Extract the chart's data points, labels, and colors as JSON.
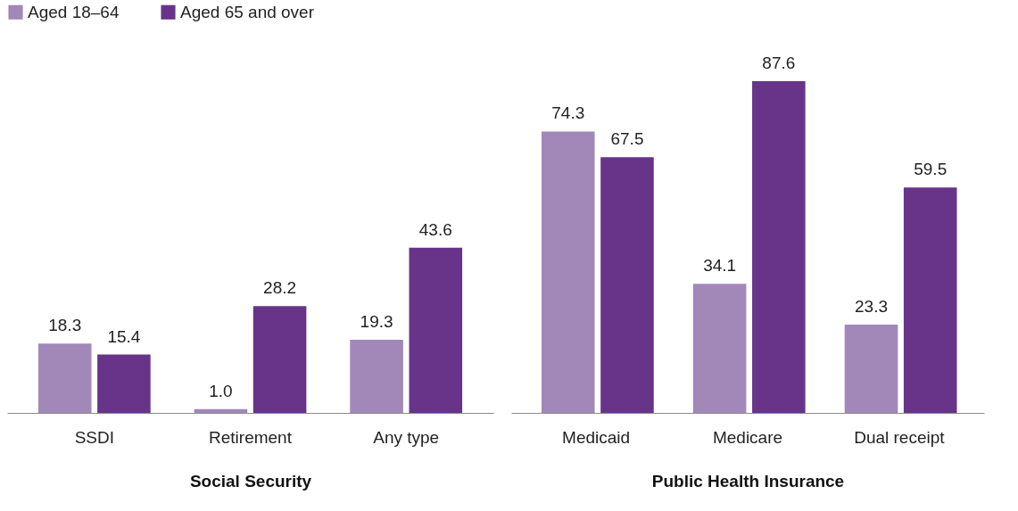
{
  "chart_data": [
    {
      "type": "bar",
      "xlabel": "Social Security",
      "categories": [
        "SSDI",
        "Retirement",
        "Any type"
      ],
      "tick_labels": "x",
      "grid": false,
      "legend": "top left",
      "series": [
        {
          "name": "Aged 18–64",
          "color": "#a287b9",
          "values": [
            18.3,
            1.0,
            19.3
          ],
          "value_labels": [
            "18.3",
            "1.0",
            "19.3"
          ]
        },
        {
          "name": "Aged 65 and over",
          "color": "#68348a",
          "values": [
            15.4,
            28.2,
            43.6
          ],
          "value_labels": [
            "15.4",
            "28.2",
            "43.6"
          ]
        }
      ]
    },
    {
      "type": "bar",
      "xlabel": "Public Health Insurance",
      "categories": [
        "Medicaid",
        "Medicare",
        "Dual receipt"
      ],
      "tick_labels": "x",
      "grid": false,
      "legend": "top left",
      "series": [
        {
          "name": "Aged 18–64",
          "color": "#a287b9",
          "values": [
            74.3,
            34.1,
            23.3
          ],
          "value_labels": [
            "74.3",
            "34.1",
            "23.3"
          ]
        },
        {
          "name": "Aged 65 and over",
          "color": "#68348a",
          "values": [
            67.5,
            87.6,
            59.5
          ],
          "value_labels": [
            "67.5",
            "87.6",
            "59.5"
          ]
        }
      ]
    }
  ]
}
